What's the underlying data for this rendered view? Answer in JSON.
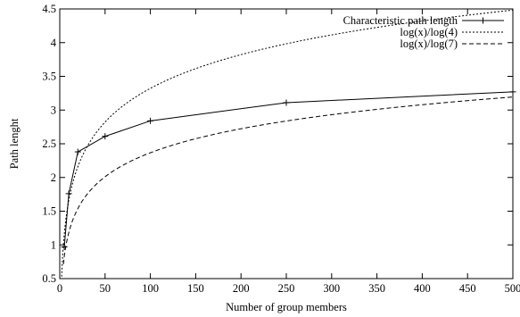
{
  "chart_data": {
    "type": "line",
    "title": "",
    "xlabel": "Number of group members",
    "ylabel": "Path lenght",
    "xlim": [
      0,
      500
    ],
    "ylim": [
      0.5,
      4.5
    ],
    "xticks": [
      "0",
      "50",
      "100",
      "150",
      "200",
      "250",
      "300",
      "350",
      "400",
      "450",
      "500"
    ],
    "yticks": [
      "0.5",
      "1",
      "1.5",
      "2",
      "2.5",
      "3",
      "3.5",
      "4",
      "4.5"
    ],
    "grid": false,
    "legend_position": "top-right",
    "series": [
      {
        "name": "Characteristic path length",
        "style": "solid-with-plus-markers",
        "color": "#000000",
        "x": [
          5,
          10,
          20,
          50,
          100,
          250,
          500
        ],
        "y": [
          0.97,
          1.76,
          2.38,
          2.61,
          2.84,
          3.11,
          3.27
        ]
      },
      {
        "name": "log(x)/log(4)",
        "style": "dotted",
        "color": "#000000",
        "function": "log4"
      },
      {
        "name": "log(x)/log(7)",
        "style": "dashed",
        "color": "#000000",
        "function": "log7"
      }
    ]
  }
}
